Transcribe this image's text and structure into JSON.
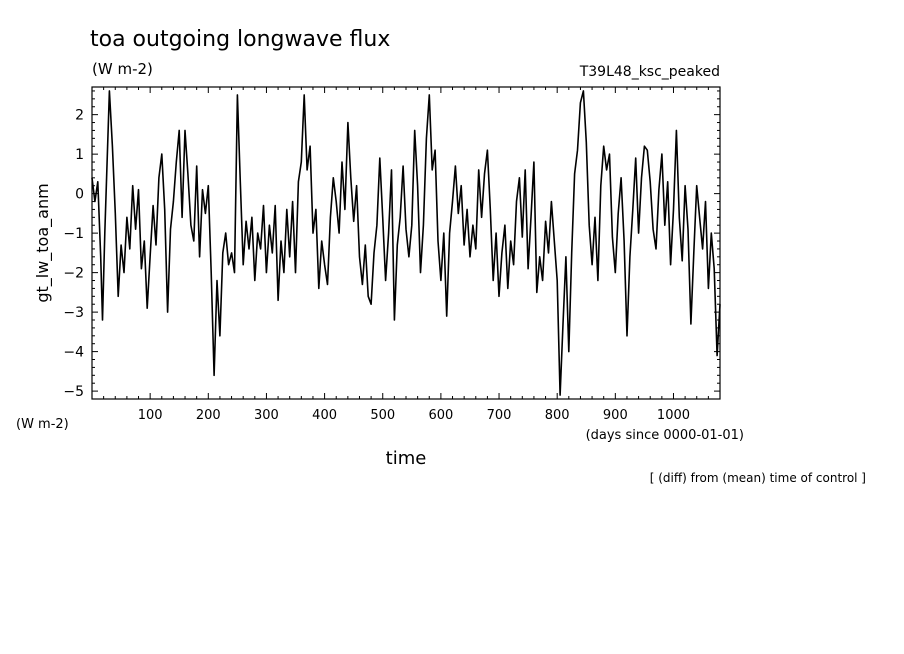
{
  "chart_data": {
    "type": "line",
    "title": "toa outgoing longwave flux",
    "units": "(W m-2)",
    "experiment": "T39L48_ksc_peaked",
    "ylabel": "gt_lw_toa_anm",
    "y_units_note": "(W m-2)",
    "xlabel": "time",
    "x_units_note": "(days since 0000-01-01)",
    "footnote": "[ (diff) from (mean) time of control ]",
    "xlim": [
      0,
      1080
    ],
    "ylim": [
      -5.2,
      2.7
    ],
    "x_ticks": [
      100,
      200,
      300,
      400,
      500,
      600,
      700,
      800,
      900,
      1000
    ],
    "y_ticks": [
      2,
      1,
      0,
      -1,
      -2,
      -3,
      -4,
      -5
    ],
    "grid": false,
    "series": [
      {
        "points": [
          [
            0,
            0.4
          ],
          [
            5,
            -0.2
          ],
          [
            10,
            0.3
          ],
          [
            15,
            -1.6
          ],
          [
            18,
            -3.2
          ],
          [
            22,
            -1.0
          ],
          [
            26,
            0.8
          ],
          [
            30,
            2.6
          ],
          [
            35,
            1.2
          ],
          [
            40,
            -0.5
          ],
          [
            45,
            -2.6
          ],
          [
            50,
            -1.3
          ],
          [
            55,
            -2.0
          ],
          [
            60,
            -0.6
          ],
          [
            65,
            -1.4
          ],
          [
            70,
            0.2
          ],
          [
            75,
            -0.9
          ],
          [
            80,
            0.1
          ],
          [
            85,
            -1.9
          ],
          [
            90,
            -1.2
          ],
          [
            95,
            -2.9
          ],
          [
            100,
            -1.6
          ],
          [
            105,
            -0.3
          ],
          [
            110,
            -1.3
          ],
          [
            115,
            0.4
          ],
          [
            120,
            1.0
          ],
          [
            125,
            -0.4
          ],
          [
            130,
            -3.0
          ],
          [
            135,
            -0.9
          ],
          [
            140,
            -0.2
          ],
          [
            145,
            0.8
          ],
          [
            150,
            1.6
          ],
          [
            155,
            -0.6
          ],
          [
            160,
            1.6
          ],
          [
            165,
            0.5
          ],
          [
            170,
            -0.8
          ],
          [
            175,
            -1.2
          ],
          [
            180,
            0.7
          ],
          [
            185,
            -1.6
          ],
          [
            190,
            0.1
          ],
          [
            195,
            -0.5
          ],
          [
            200,
            0.2
          ],
          [
            205,
            -2.0
          ],
          [
            210,
            -4.6
          ],
          [
            215,
            -2.2
          ],
          [
            220,
            -3.6
          ],
          [
            225,
            -1.5
          ],
          [
            230,
            -1.0
          ],
          [
            235,
            -1.8
          ],
          [
            240,
            -1.5
          ],
          [
            245,
            -2.0
          ],
          [
            250,
            2.5
          ],
          [
            255,
            0.3
          ],
          [
            260,
            -1.8
          ],
          [
            265,
            -0.7
          ],
          [
            270,
            -1.4
          ],
          [
            275,
            -0.6
          ],
          [
            280,
            -2.2
          ],
          [
            285,
            -1.0
          ],
          [
            290,
            -1.4
          ],
          [
            295,
            -0.3
          ],
          [
            300,
            -2.0
          ],
          [
            305,
            -0.8
          ],
          [
            310,
            -1.5
          ],
          [
            315,
            -0.3
          ],
          [
            320,
            -2.7
          ],
          [
            325,
            -1.2
          ],
          [
            330,
            -2.0
          ],
          [
            335,
            -0.4
          ],
          [
            340,
            -1.6
          ],
          [
            345,
            -0.2
          ],
          [
            350,
            -2.0
          ],
          [
            355,
            0.3
          ],
          [
            360,
            0.8
          ],
          [
            365,
            2.5
          ],
          [
            370,
            0.6
          ],
          [
            375,
            1.2
          ],
          [
            380,
            -1.0
          ],
          [
            385,
            -0.4
          ],
          [
            390,
            -2.4
          ],
          [
            395,
            -1.2
          ],
          [
            400,
            -1.8
          ],
          [
            405,
            -2.3
          ],
          [
            410,
            -0.6
          ],
          [
            415,
            0.4
          ],
          [
            420,
            -0.2
          ],
          [
            425,
            -1.0
          ],
          [
            430,
            0.8
          ],
          [
            435,
            -0.4
          ],
          [
            440,
            1.8
          ],
          [
            445,
            0.4
          ],
          [
            450,
            -0.7
          ],
          [
            455,
            0.2
          ],
          [
            460,
            -1.6
          ],
          [
            465,
            -2.3
          ],
          [
            470,
            -1.3
          ],
          [
            475,
            -2.6
          ],
          [
            480,
            -2.8
          ],
          [
            485,
            -1.5
          ],
          [
            490,
            -0.8
          ],
          [
            495,
            0.9
          ],
          [
            500,
            -0.6
          ],
          [
            505,
            -2.2
          ],
          [
            510,
            -1.0
          ],
          [
            515,
            0.6
          ],
          [
            520,
            -3.2
          ],
          [
            525,
            -1.3
          ],
          [
            530,
            -0.6
          ],
          [
            535,
            0.7
          ],
          [
            540,
            -0.9
          ],
          [
            545,
            -1.6
          ],
          [
            550,
            -0.8
          ],
          [
            555,
            1.6
          ],
          [
            560,
            0.2
          ],
          [
            565,
            -2.0
          ],
          [
            570,
            -0.8
          ],
          [
            575,
            1.4
          ],
          [
            580,
            2.5
          ],
          [
            585,
            0.6
          ],
          [
            590,
            1.1
          ],
          [
            595,
            -1.2
          ],
          [
            600,
            -2.2
          ],
          [
            605,
            -1.0
          ],
          [
            610,
            -3.1
          ],
          [
            615,
            -1.0
          ],
          [
            620,
            -0.2
          ],
          [
            625,
            0.7
          ],
          [
            630,
            -0.5
          ],
          [
            635,
            0.2
          ],
          [
            640,
            -1.3
          ],
          [
            645,
            -0.4
          ],
          [
            650,
            -1.6
          ],
          [
            655,
            -0.8
          ],
          [
            660,
            -1.4
          ],
          [
            665,
            0.6
          ],
          [
            670,
            -0.6
          ],
          [
            675,
            0.5
          ],
          [
            680,
            1.1
          ],
          [
            685,
            -0.4
          ],
          [
            690,
            -2.2
          ],
          [
            695,
            -1.0
          ],
          [
            700,
            -2.6
          ],
          [
            705,
            -1.5
          ],
          [
            710,
            -0.8
          ],
          [
            715,
            -2.4
          ],
          [
            720,
            -1.2
          ],
          [
            725,
            -1.8
          ],
          [
            730,
            -0.2
          ],
          [
            735,
            0.4
          ],
          [
            740,
            -1.1
          ],
          [
            745,
            0.6
          ],
          [
            750,
            -1.9
          ],
          [
            755,
            -0.6
          ],
          [
            760,
            0.8
          ],
          [
            765,
            -2.5
          ],
          [
            770,
            -1.6
          ],
          [
            775,
            -2.2
          ],
          [
            780,
            -0.7
          ],
          [
            785,
            -1.5
          ],
          [
            790,
            -0.2
          ],
          [
            795,
            -1.2
          ],
          [
            800,
            -2.2
          ],
          [
            805,
            -5.1
          ],
          [
            810,
            -3.3
          ],
          [
            815,
            -1.6
          ],
          [
            820,
            -4.0
          ],
          [
            825,
            -1.5
          ],
          [
            830,
            0.5
          ],
          [
            835,
            1.1
          ],
          [
            840,
            2.3
          ],
          [
            845,
            2.6
          ],
          [
            850,
            1.3
          ],
          [
            855,
            -0.8
          ],
          [
            860,
            -1.8
          ],
          [
            865,
            -0.6
          ],
          [
            870,
            -2.2
          ],
          [
            875,
            0.2
          ],
          [
            880,
            1.2
          ],
          [
            885,
            0.6
          ],
          [
            890,
            1.0
          ],
          [
            895,
            -1.1
          ],
          [
            900,
            -2.0
          ],
          [
            905,
            -0.5
          ],
          [
            910,
            0.4
          ],
          [
            915,
            -1.2
          ],
          [
            920,
            -3.6
          ],
          [
            925,
            -1.6
          ],
          [
            930,
            -0.4
          ],
          [
            935,
            0.9
          ],
          [
            940,
            -1.0
          ],
          [
            945,
            0.4
          ],
          [
            950,
            1.2
          ],
          [
            955,
            1.1
          ],
          [
            960,
            0.3
          ],
          [
            965,
            -0.9
          ],
          [
            970,
            -1.4
          ],
          [
            975,
            0.1
          ],
          [
            980,
            1.0
          ],
          [
            985,
            -0.8
          ],
          [
            990,
            0.3
          ],
          [
            995,
            -1.8
          ],
          [
            1000,
            -0.4
          ],
          [
            1005,
            1.6
          ],
          [
            1010,
            -0.6
          ],
          [
            1015,
            -1.7
          ],
          [
            1020,
            0.2
          ],
          [
            1025,
            -0.9
          ],
          [
            1030,
            -3.3
          ],
          [
            1035,
            -1.5
          ],
          [
            1040,
            0.2
          ],
          [
            1045,
            -0.6
          ],
          [
            1050,
            -1.4
          ],
          [
            1055,
            -0.2
          ],
          [
            1060,
            -2.4
          ],
          [
            1065,
            -1.0
          ],
          [
            1070,
            -1.9
          ],
          [
            1075,
            -4.1
          ],
          [
            1080,
            -2.8
          ]
        ]
      }
    ]
  }
}
